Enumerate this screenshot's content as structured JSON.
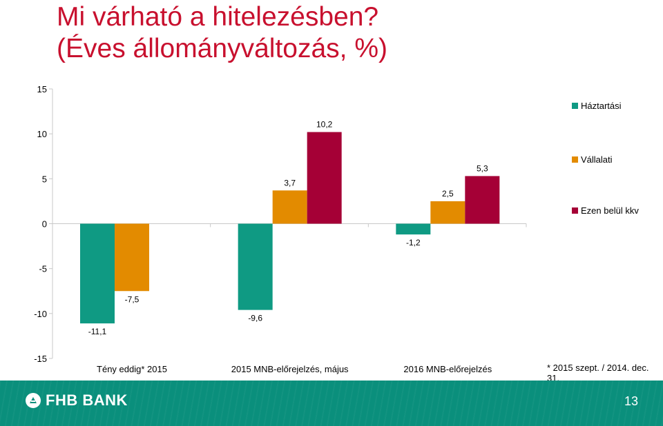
{
  "slide": {
    "title_line1": "Mi várható a hitelezésben?",
    "title_line2": "(Éves állományváltozás, %)",
    "footnote": "* 2015 szept. / 2014. dec. 31.",
    "page_number": "13"
  },
  "brand": {
    "name": "FHB BANK",
    "color": "#0a8f7c"
  },
  "chart_data": {
    "type": "bar",
    "categories": [
      "Tény eddig* 2015",
      "2015 MNB-előrejelzés, május",
      "2016 MNB-előrejelzés"
    ],
    "series": [
      {
        "name": "Háztartási",
        "color": "#0f9a83",
        "values": [
          -11.1,
          -9.6,
          -1.2
        ],
        "labels": [
          "-11,1",
          "-9,6",
          "-1,2"
        ]
      },
      {
        "name": "Vállalati",
        "color": "#e38b00",
        "values": [
          -7.5,
          3.7,
          2.5
        ],
        "labels": [
          "-7,5",
          "3,7",
          "2,5"
        ]
      },
      {
        "name": "Ezen belül kkv",
        "color": "#a50036",
        "values": [
          null,
          10.2,
          5.3
        ],
        "labels": [
          "",
          "10,2",
          "5,3"
        ]
      }
    ],
    "ylim": [
      -15,
      15
    ],
    "yticks": [
      15,
      10,
      5,
      0,
      -5,
      -10,
      -15
    ],
    "legend_position": "right",
    "grid": false
  }
}
